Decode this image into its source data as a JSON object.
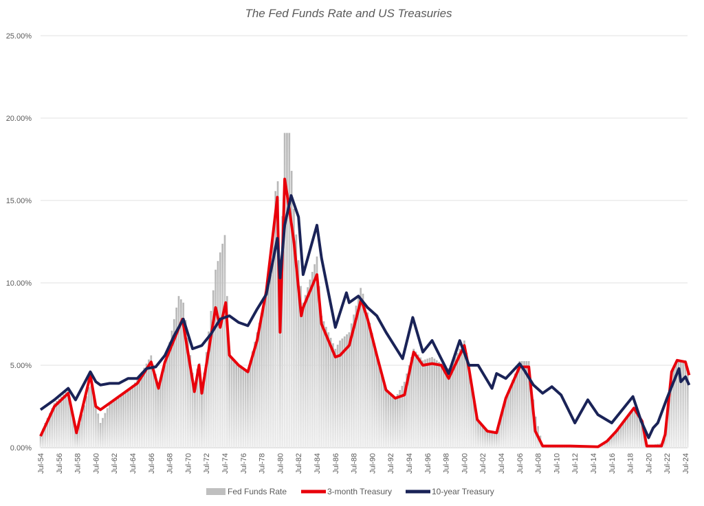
{
  "chart_data": {
    "type": "bar+line",
    "title": "The Fed Funds Rate and US Treasuries",
    "xlabel": "",
    "ylabel": "",
    "ylim": [
      0,
      25
    ],
    "xlim": [
      1954.5,
      2024.9
    ],
    "y_ticks": [
      "0.00%",
      "5.00%",
      "10.00%",
      "15.00%",
      "20.00%",
      "25.00%"
    ],
    "x_ticks": [
      "Jul-54",
      "Jul-56",
      "Jul-58",
      "Jul-60",
      "Jul-62",
      "Jul-64",
      "Jul-66",
      "Jul-68",
      "Jul-70",
      "Jul-72",
      "Jul-74",
      "Jul-76",
      "Jul-78",
      "Jul-80",
      "Jul-82",
      "Jul-84",
      "Jul-86",
      "Jul-88",
      "Jul-90",
      "Jul-92",
      "Jul-94",
      "Jul-96",
      "Jul-98",
      "Jul-00",
      "Jul-02",
      "Jul-04",
      "Jul-06",
      "Jul-08",
      "Jul-10",
      "Jul-12",
      "Jul-14",
      "Jul-16",
      "Jul-18",
      "Jul-20",
      "Jul-22",
      "Jul-24"
    ],
    "grid": true,
    "legend_position": "bottom",
    "series": [
      {
        "name": "Fed Funds Rate",
        "type": "bar",
        "color": "#bfbfbf",
        "points": [
          [
            1954.5,
            0.8
          ],
          [
            1955,
            1.5
          ],
          [
            1956,
            2.7
          ],
          [
            1957.5,
            3.5
          ],
          [
            1958.4,
            0.7
          ],
          [
            1959.9,
            4.0
          ],
          [
            1961,
            1.5
          ],
          [
            1962,
            2.7
          ],
          [
            1963,
            3.0
          ],
          [
            1964,
            3.5
          ],
          [
            1965,
            4.1
          ],
          [
            1966.5,
            5.6
          ],
          [
            1967.3,
            3.8
          ],
          [
            1968,
            5.0
          ],
          [
            1969.5,
            9.2
          ],
          [
            1970,
            8.8
          ],
          [
            1971.2,
            3.7
          ],
          [
            1971.7,
            5.5
          ],
          [
            1972,
            3.3
          ],
          [
            1973.5,
            10.8
          ],
          [
            1974.5,
            12.9
          ],
          [
            1975,
            5.5
          ],
          [
            1976,
            5.0
          ],
          [
            1977,
            4.7
          ],
          [
            1978,
            7.0
          ],
          [
            1979.5,
            10.5
          ],
          [
            1980.2,
            17.6
          ],
          [
            1980.5,
            9.0
          ],
          [
            1981,
            19.1
          ],
          [
            1981.5,
            19.1
          ],
          [
            1982,
            14.5
          ],
          [
            1982.8,
            9.5
          ],
          [
            1983,
            8.8
          ],
          [
            1984.5,
            11.6
          ],
          [
            1985,
            8.0
          ],
          [
            1986.5,
            6.0
          ],
          [
            1987,
            6.5
          ],
          [
            1988,
            7.0
          ],
          [
            1989.3,
            9.8
          ],
          [
            1990,
            8.2
          ],
          [
            1991,
            5.7
          ],
          [
            1992,
            3.5
          ],
          [
            1993,
            3.0
          ],
          [
            1994,
            4.0
          ],
          [
            1995,
            6.0
          ],
          [
            1996,
            5.3
          ],
          [
            1997,
            5.5
          ],
          [
            1998.8,
            4.8
          ],
          [
            2000.5,
            6.5
          ],
          [
            2001,
            5.0
          ],
          [
            2001.9,
            1.8
          ],
          [
            2003,
            1.0
          ],
          [
            2004,
            1.0
          ],
          [
            2005,
            3.0
          ],
          [
            2006.5,
            5.25
          ],
          [
            2007.5,
            5.25
          ],
          [
            2008.2,
            2.0
          ],
          [
            2009,
            0.15
          ],
          [
            2015,
            0.1
          ],
          [
            2016,
            0.4
          ],
          [
            2017,
            1.0
          ],
          [
            2019,
            2.4
          ],
          [
            2019.8,
            1.6
          ],
          [
            2020.3,
            0.1
          ],
          [
            2022.2,
            0.3
          ],
          [
            2023,
            4.5
          ],
          [
            2023.6,
            5.3
          ],
          [
            2024.5,
            5.3
          ],
          [
            2024.9,
            4.6
          ]
        ]
      },
      {
        "name": "3-month Treasury",
        "type": "line",
        "color": "#e8000b",
        "points": [
          [
            1954.5,
            0.7
          ],
          [
            1955,
            1.3
          ],
          [
            1956,
            2.5
          ],
          [
            1957.5,
            3.3
          ],
          [
            1958.4,
            0.9
          ],
          [
            1959.9,
            4.4
          ],
          [
            1960.5,
            2.5
          ],
          [
            1961,
            2.3
          ],
          [
            1962,
            2.7
          ],
          [
            1963,
            3.1
          ],
          [
            1964,
            3.5
          ],
          [
            1965,
            3.9
          ],
          [
            1966.5,
            5.2
          ],
          [
            1967.3,
            3.6
          ],
          [
            1968,
            5.2
          ],
          [
            1969.9,
            7.8
          ],
          [
            1971.2,
            3.4
          ],
          [
            1971.7,
            5.0
          ],
          [
            1972,
            3.3
          ],
          [
            1973.5,
            8.5
          ],
          [
            1974,
            7.3
          ],
          [
            1974.6,
            8.8
          ],
          [
            1975,
            5.6
          ],
          [
            1976,
            5.0
          ],
          [
            1977,
            4.6
          ],
          [
            1978,
            6.5
          ],
          [
            1979,
            9.5
          ],
          [
            1980.2,
            15.2
          ],
          [
            1980.5,
            7.0
          ],
          [
            1981,
            16.3
          ],
          [
            1981.5,
            14.5
          ],
          [
            1982,
            12.5
          ],
          [
            1982.8,
            8.0
          ],
          [
            1983,
            8.5
          ],
          [
            1984.5,
            10.5
          ],
          [
            1985,
            7.5
          ],
          [
            1986.5,
            5.5
          ],
          [
            1987,
            5.6
          ],
          [
            1988,
            6.2
          ],
          [
            1989.3,
            9.0
          ],
          [
            1990,
            7.8
          ],
          [
            1991,
            5.6
          ],
          [
            1992,
            3.5
          ],
          [
            1993,
            3.0
          ],
          [
            1994,
            3.2
          ],
          [
            1995,
            5.8
          ],
          [
            1996,
            5.0
          ],
          [
            1997,
            5.1
          ],
          [
            1998,
            5.0
          ],
          [
            1998.8,
            4.2
          ],
          [
            2000.5,
            6.2
          ],
          [
            2001,
            4.8
          ],
          [
            2001.9,
            1.7
          ],
          [
            2003,
            1.0
          ],
          [
            2004,
            0.9
          ],
          [
            2005,
            3.0
          ],
          [
            2006.5,
            4.9
          ],
          [
            2007.5,
            4.9
          ],
          [
            2008.2,
            1.0
          ],
          [
            2009,
            0.1
          ],
          [
            2012,
            0.1
          ],
          [
            2015,
            0.05
          ],
          [
            2016,
            0.4
          ],
          [
            2017,
            1.0
          ],
          [
            2018.9,
            2.4
          ],
          [
            2019.8,
            1.6
          ],
          [
            2020.3,
            0.1
          ],
          [
            2021.9,
            0.1
          ],
          [
            2022.3,
            0.8
          ],
          [
            2023,
            4.6
          ],
          [
            2023.6,
            5.3
          ],
          [
            2024.5,
            5.2
          ],
          [
            2024.9,
            4.4
          ]
        ]
      },
      {
        "name": "10-year Treasury",
        "type": "line",
        "color": "#1a2357",
        "points": [
          [
            1954.5,
            2.3
          ],
          [
            1956,
            2.9
          ],
          [
            1957.5,
            3.6
          ],
          [
            1958.3,
            2.9
          ],
          [
            1959.9,
            4.6
          ],
          [
            1960.5,
            4.0
          ],
          [
            1961,
            3.8
          ],
          [
            1962,
            3.9
          ],
          [
            1963,
            3.9
          ],
          [
            1964,
            4.2
          ],
          [
            1965,
            4.2
          ],
          [
            1966,
            4.8
          ],
          [
            1967,
            4.9
          ],
          [
            1968,
            5.6
          ],
          [
            1969,
            6.8
          ],
          [
            1970,
            7.8
          ],
          [
            1971,
            6.0
          ],
          [
            1972,
            6.2
          ],
          [
            1973,
            6.9
          ],
          [
            1974,
            7.8
          ],
          [
            1975,
            8.0
          ],
          [
            1976,
            7.6
          ],
          [
            1977,
            7.4
          ],
          [
            1978,
            8.4
          ],
          [
            1979,
            9.3
          ],
          [
            1980.2,
            12.7
          ],
          [
            1980.5,
            10.3
          ],
          [
            1981,
            13.5
          ],
          [
            1981.7,
            15.3
          ],
          [
            1982.5,
            14.0
          ],
          [
            1983,
            10.5
          ],
          [
            1984.5,
            13.5
          ],
          [
            1985,
            11.5
          ],
          [
            1986.5,
            7.3
          ],
          [
            1987.7,
            9.4
          ],
          [
            1988,
            8.8
          ],
          [
            1989,
            9.2
          ],
          [
            1990,
            8.5
          ],
          [
            1991,
            8.0
          ],
          [
            1992,
            7.0
          ],
          [
            1993.8,
            5.4
          ],
          [
            1994.9,
            7.9
          ],
          [
            1996,
            5.8
          ],
          [
            1997,
            6.5
          ],
          [
            1998.8,
            4.5
          ],
          [
            2000,
            6.5
          ],
          [
            2001,
            5.0
          ],
          [
            2002,
            5.0
          ],
          [
            2003.5,
            3.6
          ],
          [
            2004,
            4.5
          ],
          [
            2005,
            4.2
          ],
          [
            2006.5,
            5.1
          ],
          [
            2007,
            4.7
          ],
          [
            2008,
            3.8
          ],
          [
            2009,
            3.3
          ],
          [
            2010,
            3.7
          ],
          [
            2011,
            3.2
          ],
          [
            2012.5,
            1.5
          ],
          [
            2013.9,
            2.9
          ],
          [
            2015,
            2.0
          ],
          [
            2016.5,
            1.5
          ],
          [
            2018.8,
            3.1
          ],
          [
            2019.7,
            1.6
          ],
          [
            2020.5,
            0.6
          ],
          [
            2021,
            1.2
          ],
          [
            2021.5,
            1.5
          ],
          [
            2022.5,
            3.0
          ],
          [
            2023.8,
            4.8
          ],
          [
            2024,
            4.0
          ],
          [
            2024.5,
            4.3
          ],
          [
            2024.9,
            3.8
          ]
        ]
      }
    ]
  }
}
